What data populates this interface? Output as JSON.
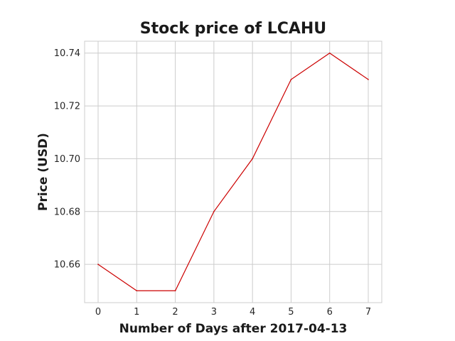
{
  "chart_data": {
    "type": "line",
    "title": "Stock price of LCAHU",
    "xlabel": "Number of Days after 2017-04-13",
    "ylabel": "Price (USD)",
    "x": [
      0,
      1,
      2,
      3,
      4,
      5,
      6,
      7
    ],
    "series": [
      {
        "values": [
          10.66,
          10.65,
          10.65,
          10.68,
          10.7,
          10.73,
          10.74,
          10.73
        ],
        "color": "#cc0000"
      }
    ],
    "xlim": [
      -0.35,
      7.35
    ],
    "ylim": [
      10.6455,
      10.7445
    ],
    "xticks": [
      0,
      1,
      2,
      3,
      4,
      5,
      6,
      7
    ],
    "xtick_labels": [
      "0",
      "1",
      "2",
      "3",
      "4",
      "5",
      "6",
      "7"
    ],
    "yticks": [
      10.66,
      10.68,
      10.7,
      10.72,
      10.74
    ],
    "ytick_labels": [
      "10.66",
      "10.68",
      "10.70",
      "10.72",
      "10.74"
    ],
    "grid": true
  }
}
